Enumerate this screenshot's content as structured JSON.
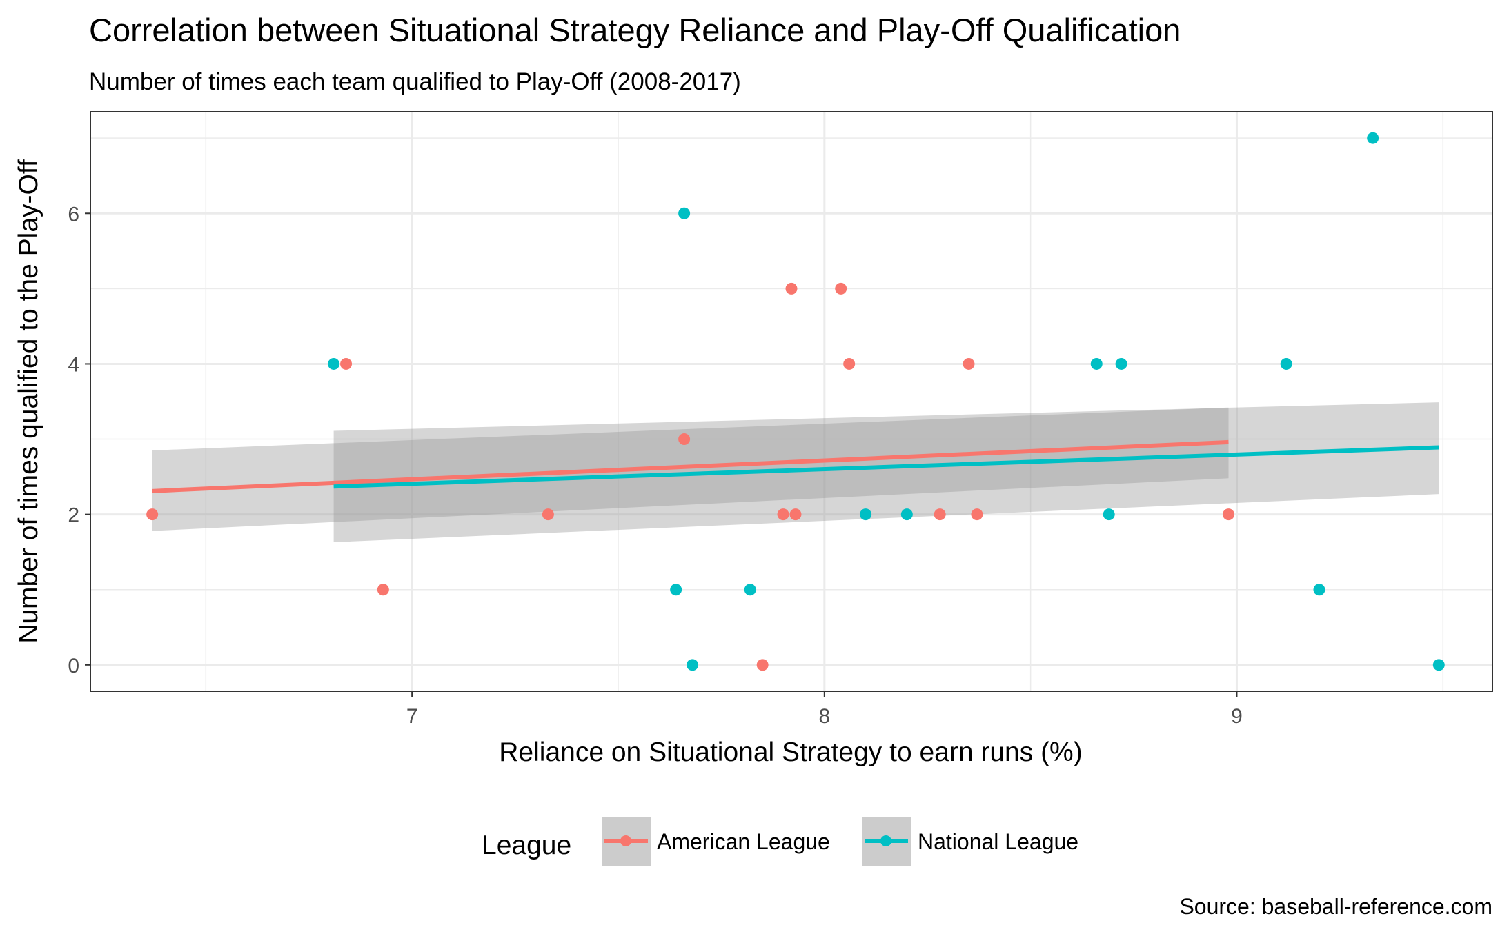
{
  "chart_data": {
    "type": "scatter",
    "title": "Correlation between Situational Strategy Reliance and Play-Off Qualification",
    "subtitle": "Number of times each team qualified to Play-Off (2008-2017)",
    "xlabel": "Reliance on Situational Strategy to earn runs (%)",
    "ylabel": "Number of times qualified to the Play-Off",
    "caption": "Source: baseball-reference.com",
    "xlim": [
      6.22,
      9.62
    ],
    "ylim": [
      -0.35,
      7.35
    ],
    "x_ticks": [
      7,
      8,
      9
    ],
    "x_tick_labels": [
      "7",
      "8",
      "9"
    ],
    "x_minor_ticks": [
      6.5,
      7.5,
      8.5,
      9.5
    ],
    "y_ticks": [
      0,
      2,
      4,
      6
    ],
    "y_tick_labels": [
      "0",
      "2",
      "4",
      "6"
    ],
    "y_minor_ticks": [
      1,
      3,
      5,
      7
    ],
    "grid": true,
    "legend": {
      "title": "League",
      "position": "bottom",
      "entries": [
        "American League",
        "National League"
      ]
    },
    "series": [
      {
        "name": "American League",
        "color": "#F8766D",
        "points": [
          {
            "x": 6.37,
            "y": 2
          },
          {
            "x": 6.84,
            "y": 4
          },
          {
            "x": 6.93,
            "y": 1
          },
          {
            "x": 7.33,
            "y": 2
          },
          {
            "x": 7.66,
            "y": 3
          },
          {
            "x": 7.85,
            "y": 0
          },
          {
            "x": 7.9,
            "y": 2
          },
          {
            "x": 7.92,
            "y": 5
          },
          {
            "x": 7.93,
            "y": 2
          },
          {
            "x": 8.04,
            "y": 5
          },
          {
            "x": 8.06,
            "y": 4
          },
          {
            "x": 8.28,
            "y": 2
          },
          {
            "x": 8.35,
            "y": 4
          },
          {
            "x": 8.37,
            "y": 2
          },
          {
            "x": 8.98,
            "y": 2
          }
        ],
        "trend": {
          "x": [
            6.37,
            8.98
          ],
          "y": [
            2.31,
            2.96
          ]
        },
        "band": {
          "x": [
            6.37,
            8.98
          ],
          "lower": [
            1.78,
            2.48
          ],
          "upper": [
            2.85,
            3.42
          ]
        }
      },
      {
        "name": "National League",
        "color": "#00BFC4",
        "points": [
          {
            "x": 6.81,
            "y": 4
          },
          {
            "x": 7.64,
            "y": 1
          },
          {
            "x": 7.66,
            "y": 6
          },
          {
            "x": 7.68,
            "y": 0
          },
          {
            "x": 7.82,
            "y": 1
          },
          {
            "x": 8.1,
            "y": 2
          },
          {
            "x": 8.2,
            "y": 2
          },
          {
            "x": 8.66,
            "y": 4
          },
          {
            "x": 8.69,
            "y": 2
          },
          {
            "x": 8.72,
            "y": 4
          },
          {
            "x": 9.12,
            "y": 4
          },
          {
            "x": 9.2,
            "y": 1
          },
          {
            "x": 9.33,
            "y": 7
          },
          {
            "x": 9.49,
            "y": 0
          }
        ],
        "trend": {
          "x": [
            6.81,
            9.49
          ],
          "y": [
            2.37,
            2.89
          ]
        },
        "band": {
          "x": [
            6.81,
            9.49
          ],
          "lower": [
            1.63,
            2.27
          ],
          "upper": [
            3.11,
            3.49
          ]
        }
      }
    ]
  }
}
